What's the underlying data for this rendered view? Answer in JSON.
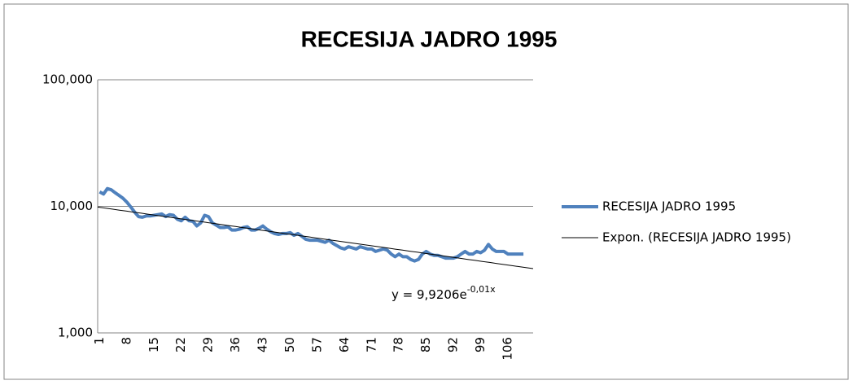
{
  "chart_data": {
    "type": "line",
    "title": "RECESIJA JADRO 1995",
    "categories": [
      "1",
      null,
      null,
      null,
      null,
      null,
      null,
      "8",
      null,
      null,
      null,
      null,
      null,
      null,
      "15",
      null,
      null,
      null,
      null,
      null,
      null,
      "22",
      null,
      null,
      null,
      null,
      null,
      null,
      "29",
      null,
      null,
      null,
      null,
      null,
      null,
      "36",
      null,
      null,
      null,
      null,
      null,
      null,
      "43",
      null,
      null,
      null,
      null,
      null,
      null,
      "50",
      null,
      null,
      null,
      null,
      null,
      null,
      "57",
      null,
      null,
      null,
      null,
      null,
      null,
      "64",
      null,
      null,
      null,
      null,
      null,
      null,
      "71",
      null,
      null,
      null,
      null,
      null,
      null,
      "78",
      null,
      null,
      null,
      null,
      null,
      null,
      "85",
      null,
      null,
      null,
      null,
      null,
      null,
      "92",
      null,
      null,
      null,
      null,
      null,
      null,
      "99",
      null,
      null,
      null,
      null,
      null,
      null,
      "106",
      null,
      null,
      null,
      null,
      null,
      null
    ],
    "series": [
      {
        "name": "RECESIJA JADRO 1995",
        "color": "#4f81bd",
        "values": [
          13.0,
          12.5,
          13.8,
          13.5,
          12.8,
          12.2,
          11.6,
          10.8,
          9.9,
          9.0,
          8.3,
          8.2,
          8.4,
          8.4,
          8.5,
          8.6,
          8.7,
          8.3,
          8.6,
          8.5,
          7.9,
          7.7,
          8.2,
          7.7,
          7.6,
          7.0,
          7.4,
          8.5,
          8.3,
          7.4,
          7.1,
          6.8,
          6.8,
          6.9,
          6.5,
          6.5,
          6.6,
          6.8,
          6.9,
          6.5,
          6.5,
          6.7,
          7.0,
          6.6,
          6.3,
          6.1,
          6.0,
          6.1,
          6.1,
          6.2,
          5.9,
          6.1,
          5.8,
          5.5,
          5.4,
          5.4,
          5.4,
          5.3,
          5.2,
          5.4,
          5.1,
          4.9,
          4.7,
          4.6,
          4.8,
          4.7,
          4.6,
          4.8,
          4.7,
          4.6,
          4.6,
          4.4,
          4.5,
          4.6,
          4.5,
          4.2,
          4.0,
          4.2,
          4.0,
          4.0,
          3.8,
          3.7,
          3.8,
          4.2,
          4.4,
          4.2,
          4.1,
          4.1,
          4.0,
          3.9,
          3.9,
          3.9,
          4.0,
          4.2,
          4.4,
          4.2,
          4.2,
          4.4,
          4.3,
          4.5,
          5.0,
          4.6,
          4.4,
          4.4,
          4.4,
          4.2,
          4.2,
          4.2,
          4.2,
          4.2,
          null,
          null
        ]
      }
    ],
    "trendline": {
      "name": "Expon. (RECESIJA JADRO 1995)",
      "color": "#000000",
      "coefficient": 9.9206,
      "rate": -0.01,
      "equation": "y = 9,9206e",
      "equation_exponent": "-0,01x"
    },
    "log_scale": true,
    "ylim": [
      1,
      100
    ],
    "yticks": [
      {
        "value": 1,
        "label": "1,000"
      },
      {
        "value": 10,
        "label": "10,000"
      },
      {
        "value": 100,
        "label": "100,000"
      }
    ],
    "grid": true,
    "legend": "right"
  }
}
